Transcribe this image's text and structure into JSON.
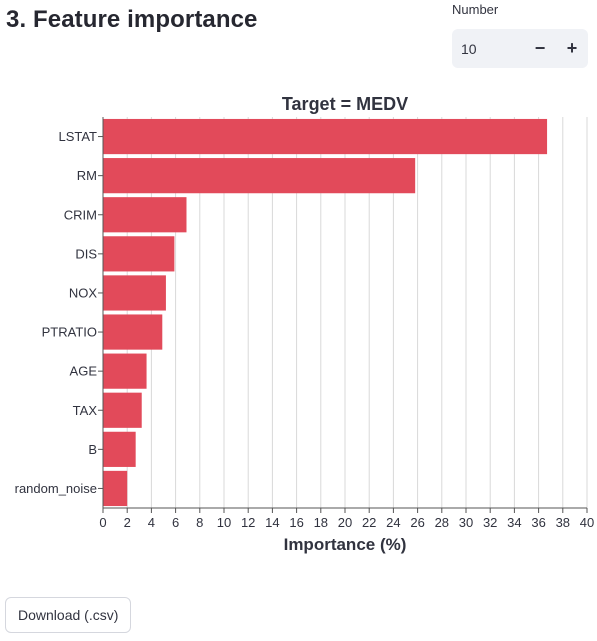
{
  "header": {
    "title": "3. Feature importance"
  },
  "number_input": {
    "label": "Number",
    "value": "10",
    "decrement_label": "−",
    "increment_label": "+"
  },
  "download": {
    "label": "Download (.csv)"
  },
  "colors": {
    "bar": "#e24a5a",
    "grid": "#d9d9d9",
    "text": "#31333f"
  },
  "chart_data": {
    "type": "bar",
    "orientation": "horizontal",
    "title": "Target = MEDV",
    "xlabel": "Importance (%)",
    "ylabel": "",
    "xlim": [
      0,
      40
    ],
    "grid": true,
    "categories": [
      "LSTAT",
      "RM",
      "CRIM",
      "DIS",
      "NOX",
      "PTRATIO",
      "AGE",
      "TAX",
      "B",
      "random_noise"
    ],
    "values": [
      36.7,
      25.8,
      6.9,
      5.9,
      5.2,
      4.9,
      3.6,
      3.2,
      2.7,
      2.0
    ],
    "xticks": [
      "0",
      "2",
      "4",
      "6",
      "8",
      "10",
      "12",
      "14",
      "16",
      "18",
      "20",
      "22",
      "24",
      "26",
      "28",
      "30",
      "32",
      "34",
      "36",
      "38",
      "40"
    ]
  }
}
